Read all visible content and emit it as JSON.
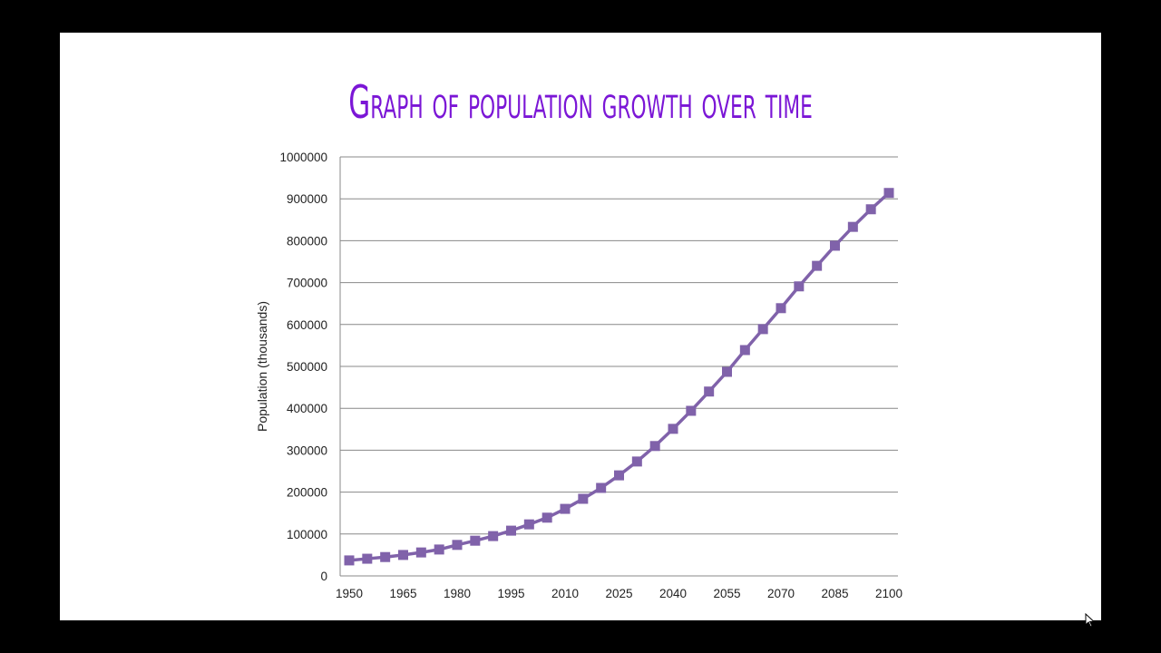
{
  "slide": {
    "title": "Graph of population growth over time",
    "background": "#ffffff",
    "title_color": "#7B16D6"
  },
  "chart_data": {
    "type": "line",
    "title": "Graph of population growth over time",
    "xlabel": "",
    "ylabel": "Population (thousands)",
    "ylim": [
      0,
      1000000
    ],
    "xlim": [
      1950,
      2100
    ],
    "grid": true,
    "legend": "none",
    "marker": "square",
    "color": "#8062AA",
    "x_tick_labels": [
      "1950",
      "1965",
      "1980",
      "1995",
      "2010",
      "2025",
      "2040",
      "2055",
      "2070",
      "2085",
      "2100"
    ],
    "y_tick_labels": [
      "0",
      "100000",
      "200000",
      "300000",
      "400000",
      "500000",
      "600000",
      "700000",
      "800000",
      "900000",
      "1000000"
    ],
    "x": [
      1950,
      1955,
      1960,
      1965,
      1970,
      1975,
      1980,
      1985,
      1990,
      1995,
      2000,
      2005,
      2010,
      2015,
      2020,
      2025,
      2030,
      2035,
      2040,
      2045,
      2050,
      2055,
      2060,
      2065,
      2070,
      2075,
      2080,
      2085,
      2090,
      2095,
      2100
    ],
    "series": [
      {
        "name": "Population",
        "values": [
          37000,
          41000,
          45000,
          50000,
          56000,
          63000,
          74000,
          84000,
          95000,
          108000,
          123000,
          139000,
          160000,
          184000,
          210000,
          240000,
          273000,
          310000,
          351000,
          394000,
          440000,
          487000,
          539000,
          589000,
          639000,
          691000,
          740000,
          788000,
          833000,
          875000,
          914000
        ]
      }
    ]
  }
}
